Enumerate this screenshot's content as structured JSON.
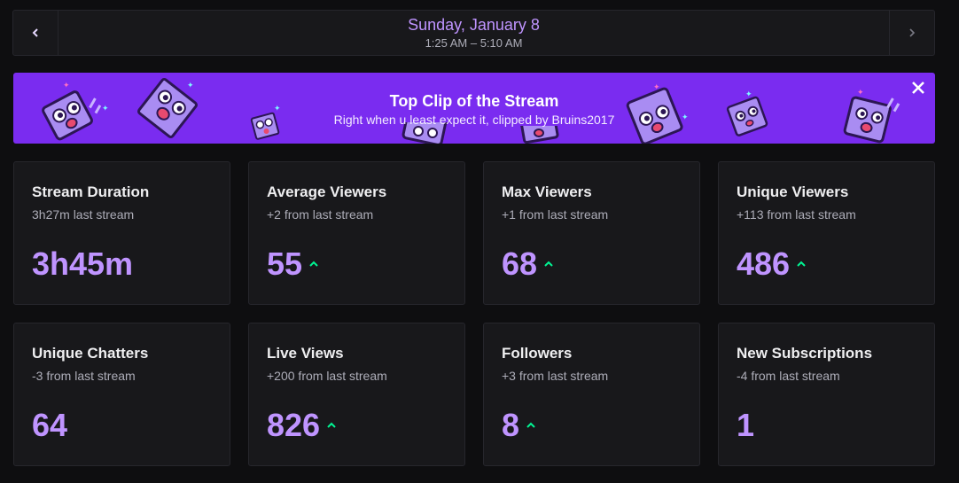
{
  "date_nav": {
    "prev_icon": "chevron-left-icon",
    "next_icon": "chevron-right-icon",
    "date": "Sunday, January 8",
    "time_range": "1:25 AM – 5:10 AM"
  },
  "banner": {
    "title": "Top Clip of the Stream",
    "subtitle": "Right when u least expect it, clipped by Bruins2017",
    "close_icon": "close-icon",
    "background_color": "#7a2cf0"
  },
  "colors": {
    "accent": "#bf94ff",
    "trend_up": "#00f593",
    "card_bg": "#18181b",
    "page_bg": "#0e0e10"
  },
  "stats": [
    {
      "title": "Stream Duration",
      "subtitle": "3h27m last stream",
      "value": "3h45m",
      "trend": "none"
    },
    {
      "title": "Average Viewers",
      "subtitle": "+2 from last stream",
      "value": "55",
      "trend": "up"
    },
    {
      "title": "Max Viewers",
      "subtitle": "+1 from last stream",
      "value": "68",
      "trend": "up"
    },
    {
      "title": "Unique Viewers",
      "subtitle": "+113 from last stream",
      "value": "486",
      "trend": "up"
    },
    {
      "title": "Unique Chatters",
      "subtitle": "-3 from last stream",
      "value": "64",
      "trend": "none"
    },
    {
      "title": "Live Views",
      "subtitle": "+200 from last stream",
      "value": "826",
      "trend": "up"
    },
    {
      "title": "Followers",
      "subtitle": "+3 from last stream",
      "value": "8",
      "trend": "up"
    },
    {
      "title": "New Subscriptions",
      "subtitle": "-4 from last stream",
      "value": "1",
      "trend": "none"
    }
  ]
}
